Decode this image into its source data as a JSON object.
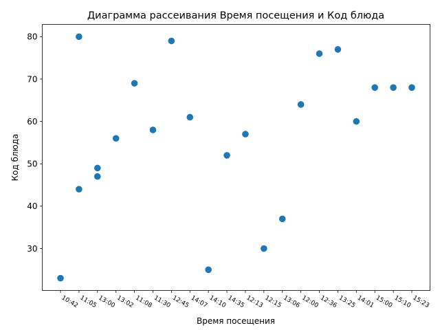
{
  "chart_data": {
    "type": "scatter",
    "title": "Диаграмма рассеивания Время посещения и Код блюда",
    "xlabel": "Время посещения",
    "ylabel": "Код блюда",
    "categories": [
      "10:42",
      "11:05",
      "13:00",
      "13:02",
      "11:08",
      "11:30",
      "12:45",
      "14:07",
      "14:10",
      "14:35",
      "12:13",
      "12:15",
      "13:06",
      "12:00",
      "12:36",
      "13:25",
      "14:01",
      "15:00",
      "15:10",
      "15:23"
    ],
    "ylim": [
      20.1,
      82.9
    ],
    "yticks": [
      30,
      40,
      50,
      60,
      70,
      80
    ],
    "grid": false,
    "legend": "none",
    "marker_color": "#1f77b4",
    "points": [
      {
        "x": "10:42",
        "y": 23
      },
      {
        "x": "11:05",
        "y": 80
      },
      {
        "x": "11:05",
        "y": 44
      },
      {
        "x": "13:00",
        "y": 49
      },
      {
        "x": "13:00",
        "y": 47
      },
      {
        "x": "13:02",
        "y": 56
      },
      {
        "x": "11:08",
        "y": 69
      },
      {
        "x": "11:30",
        "y": 58
      },
      {
        "x": "12:45",
        "y": 79
      },
      {
        "x": "14:07",
        "y": 61
      },
      {
        "x": "14:10",
        "y": 25
      },
      {
        "x": "14:35",
        "y": 52
      },
      {
        "x": "12:13",
        "y": 57
      },
      {
        "x": "12:15",
        "y": 30
      },
      {
        "x": "13:06",
        "y": 37
      },
      {
        "x": "12:00",
        "y": 64
      },
      {
        "x": "12:36",
        "y": 76
      },
      {
        "x": "13:25",
        "y": 77
      },
      {
        "x": "14:01",
        "y": 60
      },
      {
        "x": "15:00",
        "y": 68
      },
      {
        "x": "15:10",
        "y": 68
      },
      {
        "x": "15:23",
        "y": 68
      }
    ]
  }
}
